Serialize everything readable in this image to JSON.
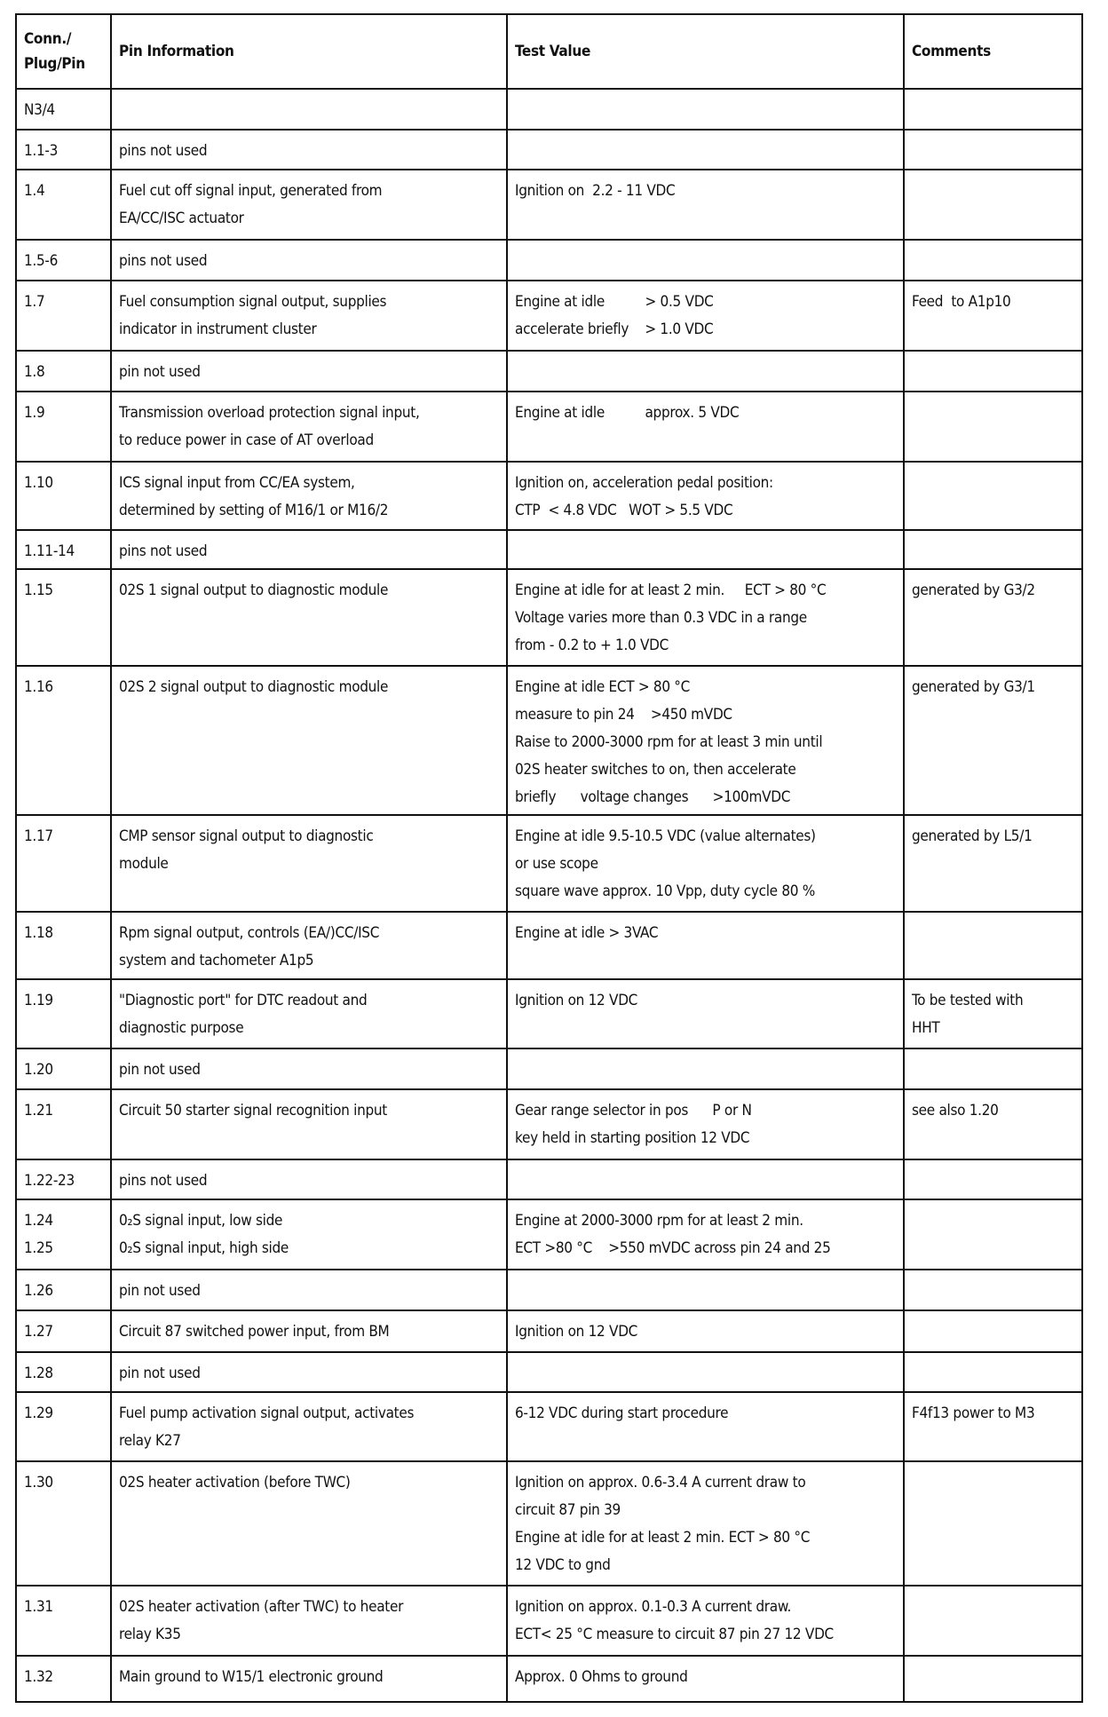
{
  "headers": [
    "Conn./\nPlug/Pin",
    "Pin Information",
    "Test Value",
    "Comments"
  ],
  "rows": [
    {
      "pin": "N3/4",
      "info": [],
      "test": [],
      "comment": []
    },
    {
      "pin": "1.1-3",
      "info": [
        "pins not used"
      ],
      "test": [],
      "comment": []
    },
    {
      "pin": "1.4",
      "info": [
        "Fuel cut off signal input, generated from",
        "EA/CC/ISC actuator"
      ],
      "test": [
        "Ignition on  2.2 - 11 VDC"
      ],
      "comment": []
    },
    {
      "pin": "1.5-6",
      "info": [
        "pins not used"
      ],
      "test": [],
      "comment": []
    },
    {
      "pin": "1.7",
      "info": [
        "Fuel consumption signal output, supplies",
        "indicator in instrument cluster"
      ],
      "test": [
        "Engine at idle          > 0.5 VDC",
        "accelerate briefly    > 1.0 VDC"
      ],
      "comment": [
        "Feed  to A1p10"
      ]
    },
    {
      "pin": "1.8",
      "info": [
        "pin not used"
      ],
      "test": [],
      "comment": []
    },
    {
      "pin": "1.9",
      "info": [
        "Transmission overload protection signal input,",
        "to reduce power in case of AT overload"
      ],
      "test": [
        "Engine at idle          approx. 5 VDC"
      ],
      "comment": []
    },
    {
      "pin": "1.10",
      "info": [
        "ICS signal input from CC/EA system,",
        "determined by setting of M16/1 or M16/2"
      ],
      "test": [
        "Ignition on, acceleration pedal position:",
        "CTP  < 4.8 VDC   WOT > 5.5 VDC"
      ],
      "comment": []
    },
    {
      "pin": "1.11-14",
      "info": [
        "pins not used"
      ],
      "test": [],
      "comment": []
    },
    {
      "pin": "1.15",
      "info": [
        "02S 1 signal output to diagnostic module"
      ],
      "test": [
        "Engine at idle for at least 2 min.     ECT > 80 °C",
        "Voltage varies more than 0.3 VDC in a range",
        "from - 0.2 to + 1.0 VDC"
      ],
      "comment": [
        "generated by G3/2"
      ]
    },
    {
      "pin": "1.16",
      "info": [
        "02S 2 signal output to diagnostic module"
      ],
      "test": [
        "Engine at idle ECT > 80 °C",
        "measure to pin 24    >450 mVDC",
        "Raise to 2000-3000 rpm for at least 3 min until",
        "02S heater switches to on, then accelerate",
        "briefly      voltage changes      >100mVDC"
      ],
      "comment": [
        "generated by G3/1"
      ]
    },
    {
      "pin": "1.17",
      "info": [
        "CMP sensor signal output to diagnostic",
        "module"
      ],
      "test": [
        "Engine at idle 9.5-10.5 VDC (value alternates)",
        "or use scope",
        "square wave approx. 10 Vpp, duty cycle 80 %"
      ],
      "comment": [
        "generated by L5/1"
      ]
    },
    {
      "pin": "1.18",
      "info": [
        "Rpm signal output, controls (EA/)CC/ISC",
        "system and tachometer A1p5"
      ],
      "test": [
        "Engine at idle > 3VAC"
      ],
      "comment": []
    },
    {
      "pin": "1.19",
      "info": [
        "\"Diagnostic port\" for DTC readout and",
        "diagnostic purpose"
      ],
      "test": [
        "Ignition on 12 VDC"
      ],
      "comment": [
        "To be tested with",
        "HHT"
      ]
    },
    {
      "pin": "1.20",
      "info": [
        "pin not used"
      ],
      "test": [],
      "comment": []
    },
    {
      "pin": "1.21",
      "info": [
        "Circuit 50 starter signal recognition input"
      ],
      "test": [
        "Gear range selector in pos      P or N",
        "key held in starting position 12 VDC"
      ],
      "comment": [
        "see also 1.20"
      ]
    },
    {
      "pin": "1.22-23",
      "info": [
        "pins not used"
      ],
      "test": [],
      "comment": []
    },
    {
      "pin": "1.24\n1.25",
      "info": [
        "0₂S signal input, low side",
        "0₂S signal input, high side"
      ],
      "test": [
        "Engine at 2000-3000 rpm for at least 2 min.",
        "ECT >80 °C    >550 mVDC across pin 24 and 25"
      ],
      "comment": []
    },
    {
      "pin": "1.26",
      "info": [
        "pin not used"
      ],
      "test": [],
      "comment": []
    },
    {
      "pin": "1.27",
      "info": [
        "Circuit 87 switched power input, from BM"
      ],
      "test": [
        "Ignition on 12 VDC"
      ],
      "comment": []
    },
    {
      "pin": "1.28",
      "info": [
        "pin not used"
      ],
      "test": [],
      "comment": []
    },
    {
      "pin": "1.29",
      "info": [
        "Fuel pump activation signal output, activates",
        "relay K27"
      ],
      "test": [
        "6-12 VDC during start procedure"
      ],
      "comment": [
        "F4f13 power to M3"
      ]
    },
    {
      "pin": "1.30",
      "info": [
        "02S heater activation (before TWC)"
      ],
      "test": [
        "Ignition on approx. 0.6-3.4 A current draw to",
        "circuit 87 pin 39",
        "Engine at idle for at least 2 min. ECT > 80 °C",
        "12 VDC to gnd"
      ],
      "comment": []
    },
    {
      "pin": "1.31",
      "info": [
        "02S heater activation (after TWC) to heater",
        "relay K35"
      ],
      "test": [
        "Ignition on approx. 0.1-0.3 A current draw.",
        "ECT< 25 °C measure to circuit 87 pin 27 12 VDC"
      ],
      "comment": []
    },
    {
      "pin": "1.32",
      "info": [
        "Main ground to W15/1 electronic ground"
      ],
      "test": [
        "Approx. 0 Ohms to ground"
      ],
      "comment": []
    }
  ]
}
